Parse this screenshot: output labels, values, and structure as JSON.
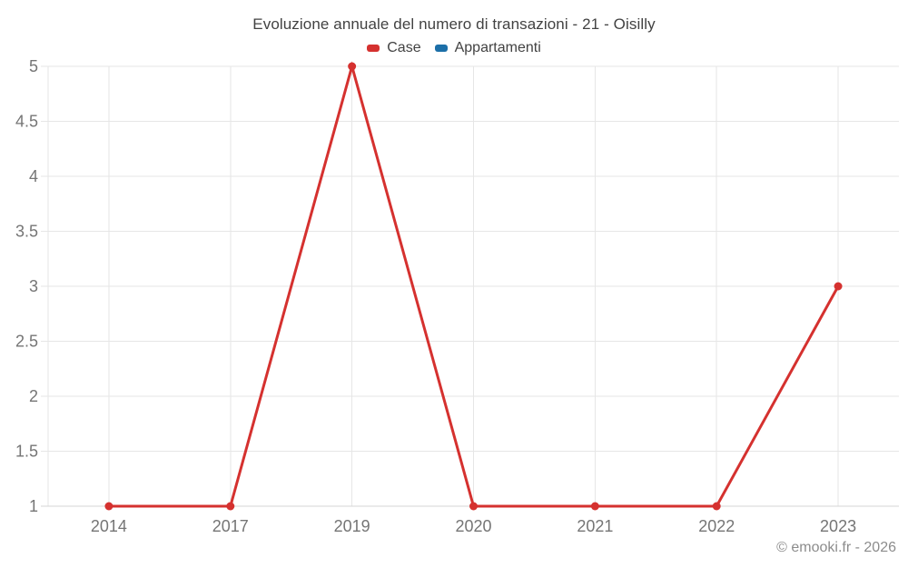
{
  "colors": {
    "title_text": "#424242",
    "legend_text": "#424242",
    "axis_text": "#757575",
    "footer_text": "#8c8c8c",
    "gridline": "#e6e6e6",
    "baseline": "#d4d4d4",
    "background": "#ffffff",
    "series_case": "#d5312f",
    "series_appartamenti": "#1c6fa8"
  },
  "footer": {
    "copyright": "© emooki.fr - 2026"
  },
  "chart_data": {
    "type": "line",
    "title": "Evoluzione annuale del numero di transazioni - 21 - Oisilly",
    "categories": [
      "2014",
      "2017",
      "2019",
      "2020",
      "2021",
      "2022",
      "2023"
    ],
    "series": [
      {
        "name": "Case",
        "color": "#d5312f",
        "marker": "circle",
        "values": [
          1,
          1,
          5,
          1,
          1,
          1,
          3
        ]
      },
      {
        "name": "Appartamenti",
        "color": "#1c6fa8",
        "marker": "circle",
        "values": [
          null,
          null,
          null,
          null,
          null,
          null,
          null
        ]
      }
    ],
    "xlabel": "",
    "ylabel": "",
    "ylim": [
      1,
      5
    ],
    "yticks": [
      1,
      1.5,
      2,
      2.5,
      3,
      3.5,
      4,
      4.5,
      5
    ],
    "grid": true,
    "legend_position": "top"
  }
}
